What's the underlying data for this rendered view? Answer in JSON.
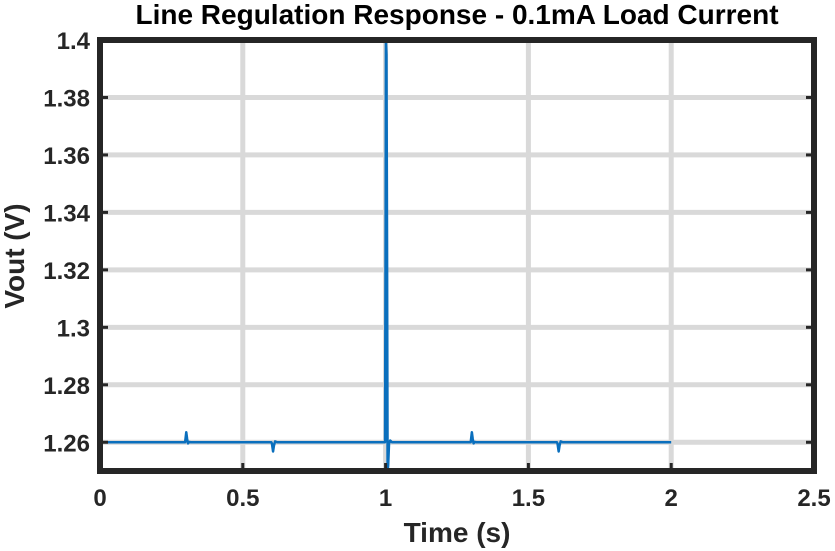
{
  "chart_data": {
    "type": "line",
    "title": "Line Regulation Response - 0.1mA Load Current",
    "xlabel": "Time (s)",
    "ylabel": "Vout (V)",
    "xlim": [
      0,
      2.5
    ],
    "ylim": [
      1.25,
      1.4
    ],
    "xticks": [
      0,
      0.5,
      1,
      1.5,
      2,
      2.5
    ],
    "xtick_labels": [
      "0",
      "0.5",
      "1",
      "1.5",
      "2",
      "2.5"
    ],
    "yticks": [
      1.26,
      1.28,
      1.3,
      1.32,
      1.34,
      1.36,
      1.38,
      1.4
    ],
    "ytick_labels": [
      "1.26",
      "1.28",
      "1.3",
      "1.32",
      "1.34",
      "1.36",
      "1.38",
      "1.4"
    ],
    "grid": true,
    "colors": {
      "series": "#0a6fbd",
      "grid": "#d9d9d9",
      "axes": "#262626"
    },
    "series": [
      {
        "x": [
          0,
          0.298,
          0.302,
          0.305,
          0.308,
          0.312,
          0.318,
          0.6,
          0.602,
          0.606,
          0.609,
          0.613,
          0.62,
          0.998,
          1.0,
          1.001,
          1.003,
          1.005,
          1.007,
          1.009,
          1.012,
          1.016,
          1.022,
          1.03,
          1.298,
          1.302,
          1.305,
          1.308,
          1.312,
          1.318,
          1.6,
          1.602,
          1.606,
          1.609,
          1.613,
          1.62,
          2.0
        ],
        "y": [
          1.26,
          1.26,
          1.2635,
          1.2612,
          1.2596,
          1.2601,
          1.26,
          1.26,
          1.2595,
          1.2568,
          1.2588,
          1.2603,
          1.26,
          1.26,
          1.335,
          1.4,
          1.395,
          1.33,
          1.25,
          1.252,
          1.2595,
          1.2606,
          1.26,
          1.26,
          1.26,
          1.2635,
          1.2612,
          1.2596,
          1.2601,
          1.26,
          1.26,
          1.2595,
          1.2568,
          1.2588,
          1.2603,
          1.26,
          1.26
        ]
      }
    ]
  }
}
